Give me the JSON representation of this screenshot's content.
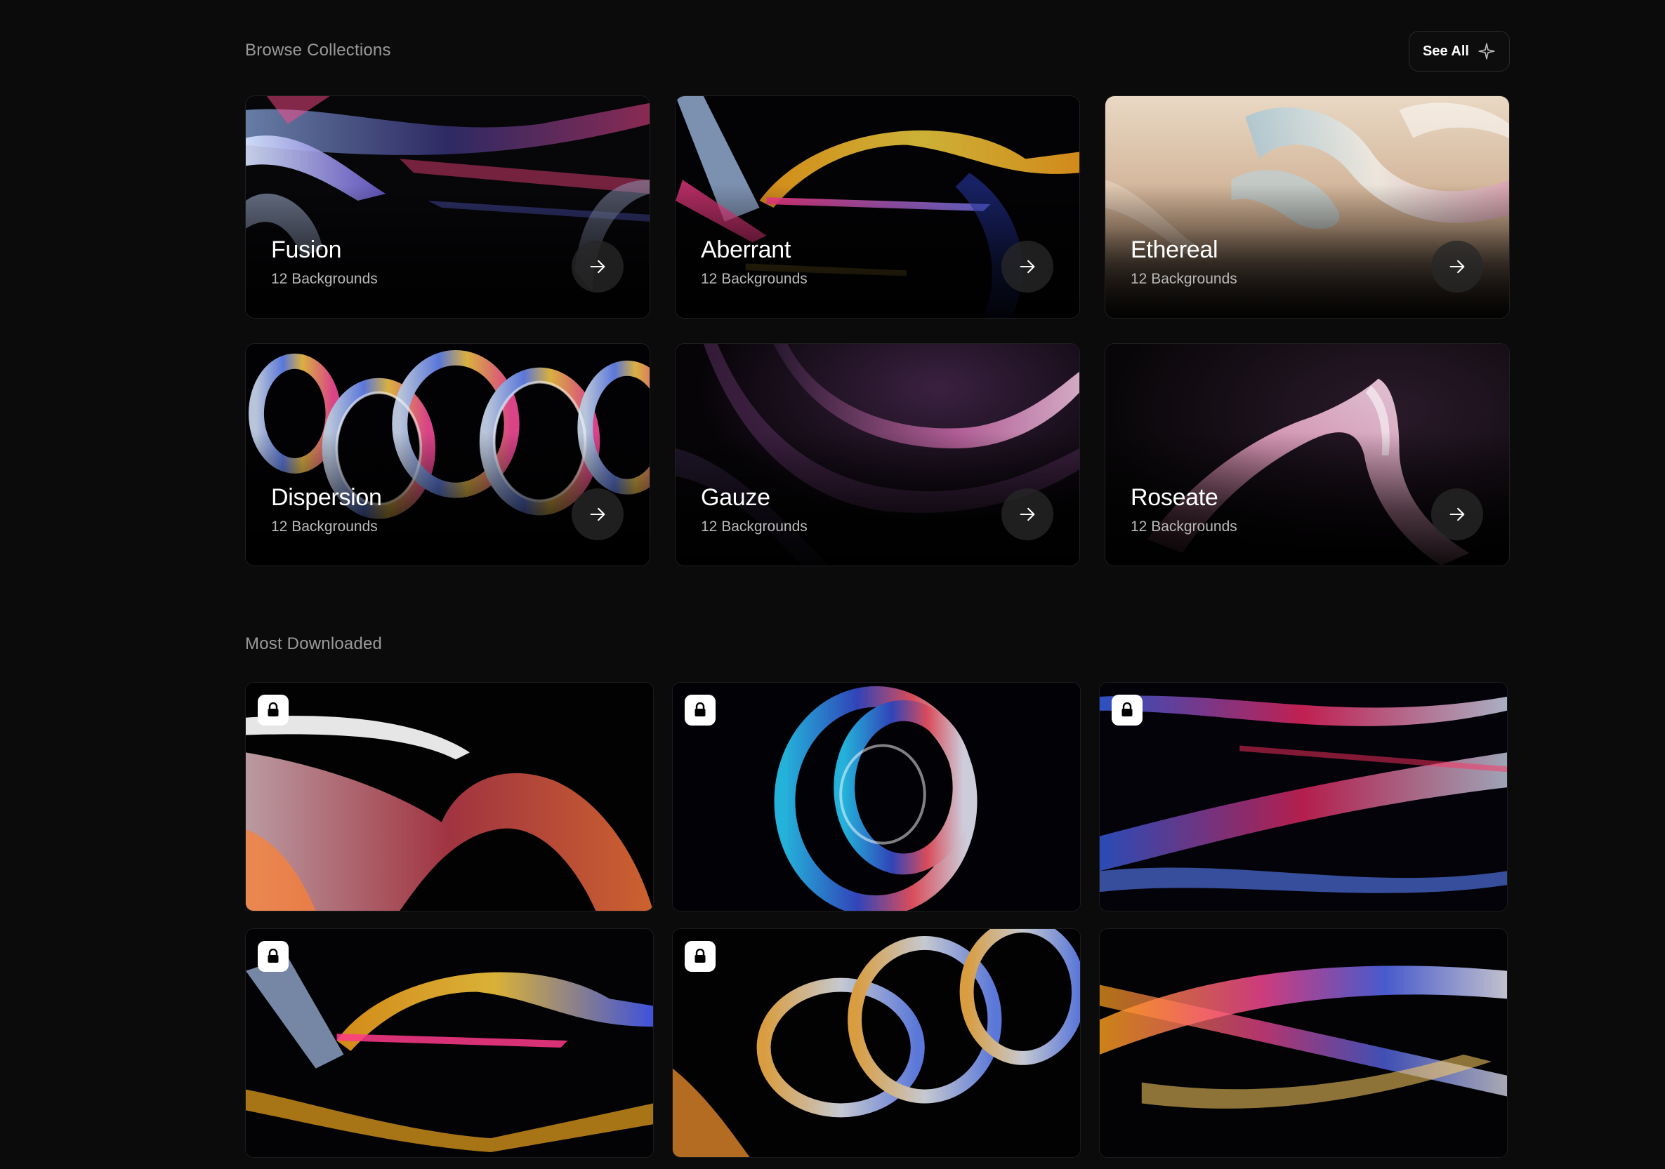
{
  "browse": {
    "title": "Browse Collections",
    "see_all_label": "See All",
    "see_all_icon": "sparkle-icon",
    "collections": [
      {
        "name": "Fusion",
        "count": "12 Backgrounds"
      },
      {
        "name": "Aberrant",
        "count": "12 Backgrounds"
      },
      {
        "name": "Ethereal",
        "count": "12 Backgrounds"
      },
      {
        "name": "Dispersion",
        "count": "12 Backgrounds"
      },
      {
        "name": "Gauze",
        "count": "12 Backgrounds"
      },
      {
        "name": "Roseate",
        "count": "12 Backgrounds"
      }
    ]
  },
  "most_downloaded": {
    "title": "Most Downloaded",
    "items": [
      {
        "locked": true
      },
      {
        "locked": true
      },
      {
        "locked": true
      },
      {
        "locked": true
      },
      {
        "locked": true
      },
      {
        "locked": false
      }
    ]
  }
}
